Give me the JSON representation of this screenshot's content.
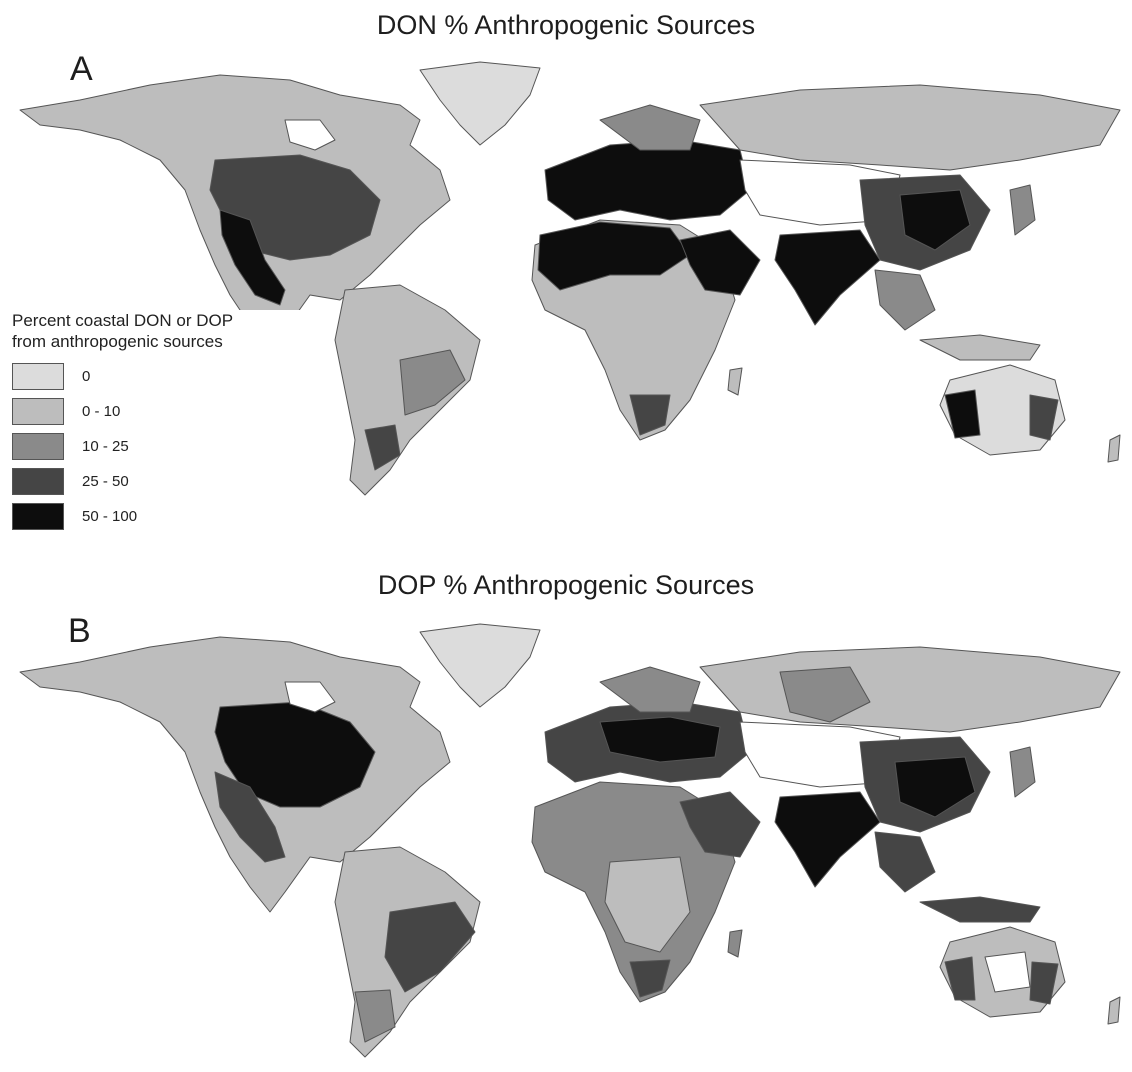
{
  "panels": [
    {
      "letter": "A",
      "title": "DON % Anthropogenic Sources"
    },
    {
      "letter": "B",
      "title": "DOP % Anthropogenic Sources"
    }
  ],
  "legend": {
    "title_line1": "Percent coastal DON or DOP",
    "title_line2": "from anthropogenic sources",
    "classes": [
      {
        "label": "0",
        "color": "#dcdcdc"
      },
      {
        "label": "0 - 10",
        "color": "#bdbdbd"
      },
      {
        "label": "10 - 25",
        "color": "#8a8a8a"
      },
      {
        "label": "25 - 50",
        "color": "#454545"
      },
      {
        "label": "50 - 100",
        "color": "#0d0d0d"
      }
    ]
  },
  "colors": {
    "background": "#ffffff",
    "border": "#555555",
    "ocean": "#ffffff"
  }
}
